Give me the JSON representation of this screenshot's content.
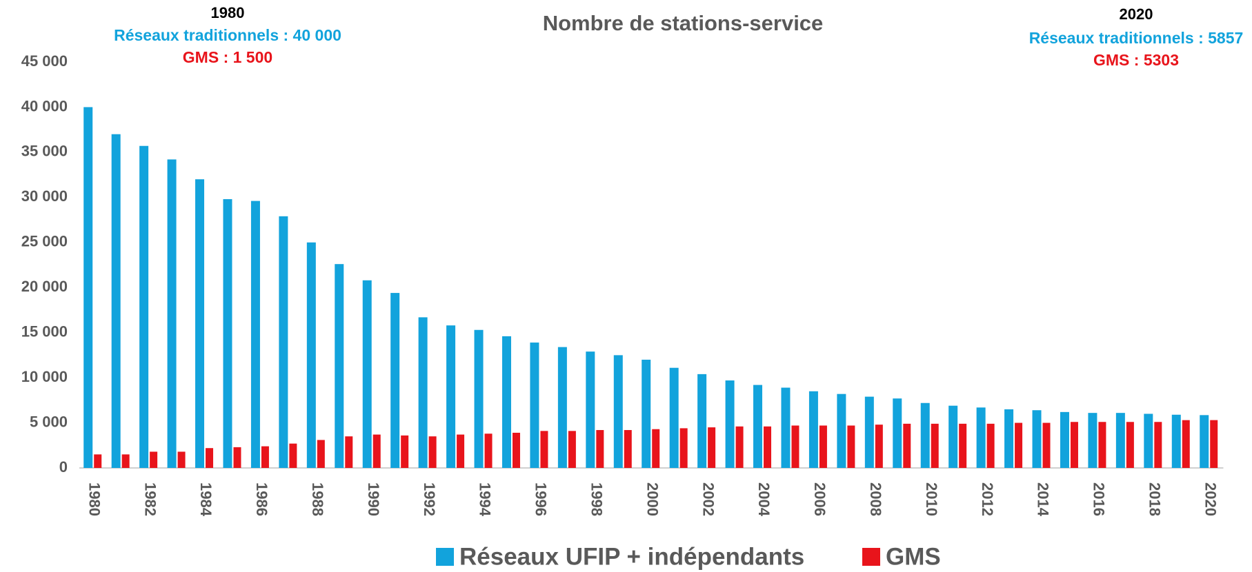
{
  "chart_data": {
    "type": "bar",
    "title": "Nombre de stations-service",
    "annotations": [
      "1980",
      "Réseaux traditionnels : 40 000",
      "GMS : 1 500",
      "2020",
      "Réseaux traditionnels : 5857",
      "GMS : 5303"
    ],
    "categories": [
      "1980",
      null,
      "1982",
      null,
      "1984",
      null,
      "1986",
      null,
      "1988",
      null,
      "1990",
      null,
      "1992",
      null,
      "1994",
      null,
      "1996",
      null,
      "1998",
      null,
      "2000",
      null,
      "2002",
      null,
      "2004",
      null,
      "2006",
      null,
      "2008",
      null,
      "2010",
      null,
      "2012",
      null,
      "2014",
      null,
      "2016",
      null,
      "2018",
      null,
      "2020"
    ],
    "series": [
      {
        "name": "Réseaux UFIP + indépendants",
        "color": "#12a3dc",
        "values": [
          40000,
          37000,
          35700,
          34200,
          32000,
          29800,
          29600,
          27900,
          25000,
          22600,
          20800,
          19400,
          16700,
          15800,
          15300,
          14600,
          13900,
          13400,
          12900,
          12500,
          12000,
          11100,
          10400,
          9700,
          9200,
          8900,
          8500,
          8200,
          7900,
          7700,
          7200,
          6900,
          6700,
          6500,
          6400,
          6200,
          6100,
          6100,
          6000,
          5900,
          5857
        ]
      },
      {
        "name": "GMS",
        "color": "#e8141b",
        "values": [
          1500,
          1500,
          1800,
          1800,
          2200,
          2300,
          2400,
          2700,
          3100,
          3500,
          3700,
          3600,
          3500,
          3700,
          3800,
          3900,
          4100,
          4100,
          4200,
          4200,
          4300,
          4400,
          4500,
          4600,
          4600,
          4700,
          4700,
          4700,
          4800,
          4900,
          4900,
          4900,
          4900,
          5000,
          5000,
          5100,
          5100,
          5100,
          5100,
          5300,
          5303
        ]
      }
    ],
    "ylim": [
      0,
      45000
    ],
    "yticks": [
      0,
      {
        "value": 5000,
        "label": "5 000"
      },
      {
        "value": 10000,
        "label": "10 000"
      },
      {
        "value": 15000,
        "label": "15 000"
      },
      {
        "value": 20000,
        "label": "20 000"
      },
      {
        "value": 25000,
        "label": "25 000"
      },
      {
        "value": 30000,
        "label": "30 000"
      },
      {
        "value": 35000,
        "label": "35 000"
      },
      {
        "value": 40000,
        "label": "40 000"
      },
      {
        "value": 45000,
        "label": "45 000"
      }
    ],
    "grid": false,
    "legend": "bottom"
  }
}
